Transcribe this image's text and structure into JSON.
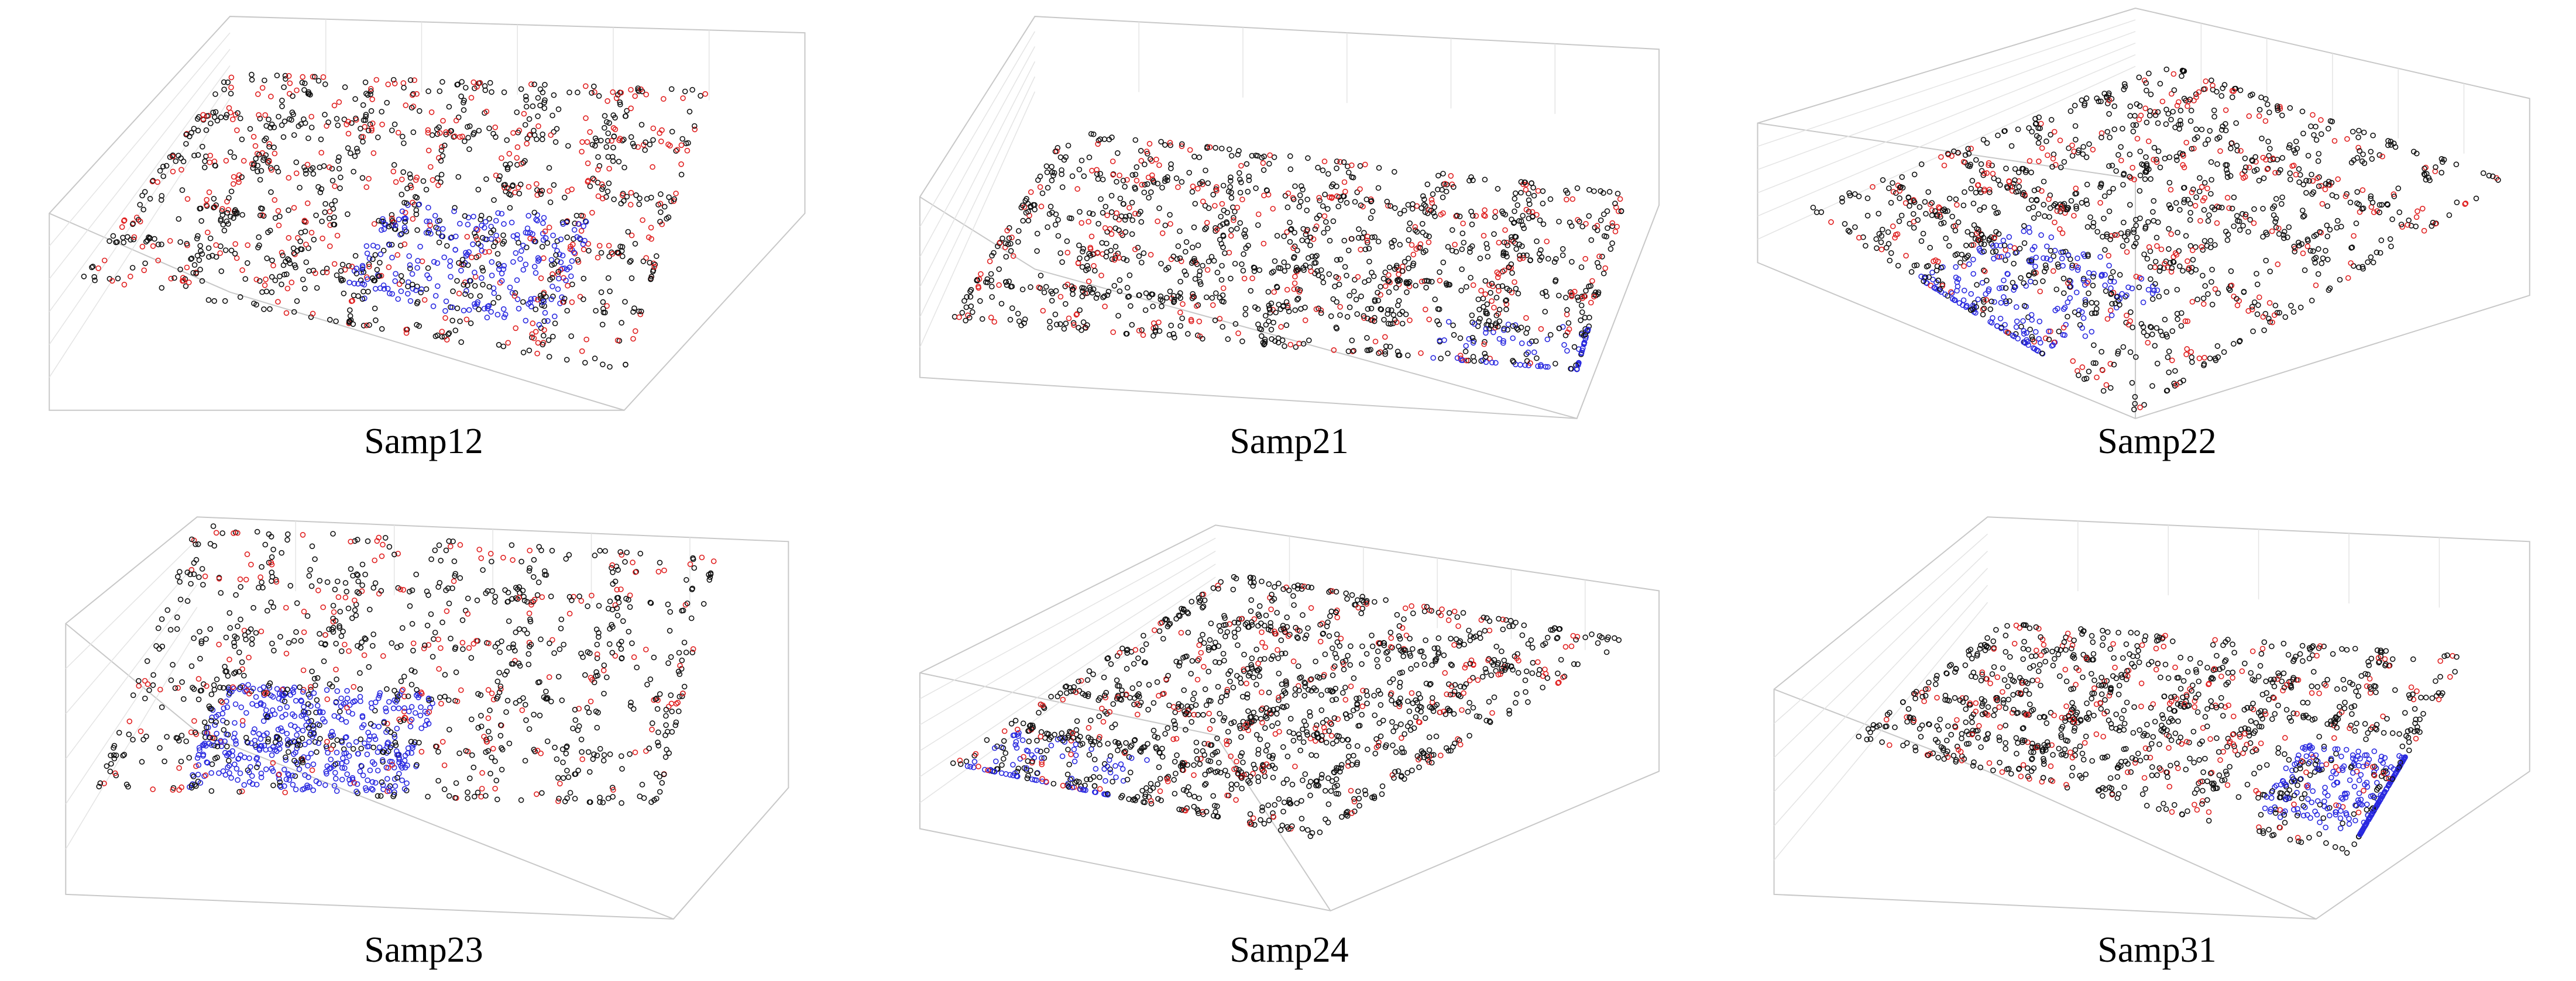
{
  "panels": [
    {
      "caption": "Samp12"
    },
    {
      "caption": "Samp21"
    },
    {
      "caption": "Samp22"
    },
    {
      "caption": "Samp23"
    },
    {
      "caption": "Samp24"
    },
    {
      "caption": "Samp31"
    }
  ]
}
